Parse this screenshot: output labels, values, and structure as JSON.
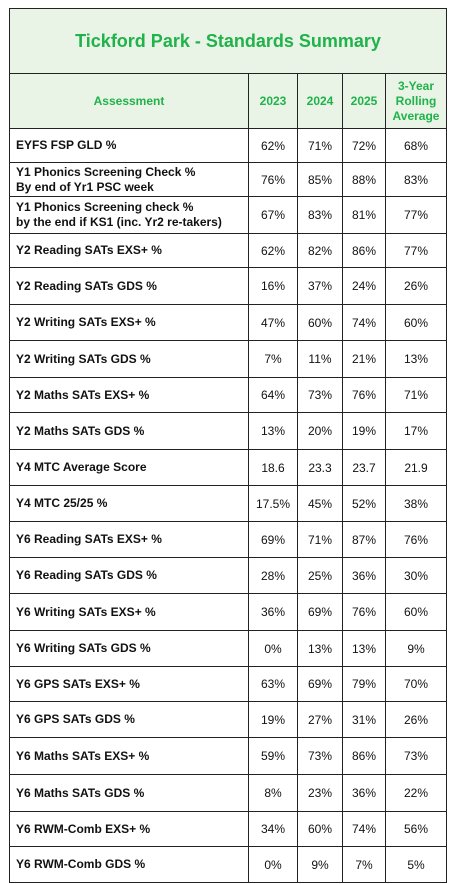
{
  "title": "Tickford Park - Standards Summary",
  "headers": {
    "assessment": "Assessment",
    "y2023": "2023",
    "y2024": "2024",
    "y2025": "2025",
    "rolling_line1": "3-Year",
    "rolling_line2": "Rolling",
    "rolling_line3": "Average"
  },
  "rows": [
    {
      "label": "EYFS FSP GLD %",
      "sub": "",
      "v2023": "62%",
      "v2024": "71%",
      "v2025": "72%",
      "avg": "68%"
    },
    {
      "label": "Y1 Phonics Screening Check %",
      "sub": "By end of Yr1 PSC week",
      "v2023": "76%",
      "v2024": "85%",
      "v2025": "88%",
      "avg": "83%"
    },
    {
      "label": "Y1 Phonics Screening check %",
      "sub": "by the end if KS1 (inc. Yr2 re-takers)",
      "v2023": "67%",
      "v2024": "83%",
      "v2025": "81%",
      "avg": "77%"
    },
    {
      "label": "Y2 Reading SATs EXS+ %",
      "sub": "",
      "v2023": "62%",
      "v2024": "82%",
      "v2025": "86%",
      "avg": "77%"
    },
    {
      "label": "Y2 Reading SATs GDS %",
      "sub": "",
      "v2023": "16%",
      "v2024": "37%",
      "v2025": "24%",
      "avg": "26%"
    },
    {
      "label": "Y2 Writing SATs EXS+ %",
      "sub": "",
      "v2023": "47%",
      "v2024": "60%",
      "v2025": "74%",
      "avg": "60%"
    },
    {
      "label": "Y2 Writing SATs GDS %",
      "sub": "",
      "v2023": "7%",
      "v2024": "11%",
      "v2025": "21%",
      "avg": "13%"
    },
    {
      "label": "Y2 Maths SATs EXS+ %",
      "sub": "",
      "v2023": "64%",
      "v2024": "73%",
      "v2025": "76%",
      "avg": "71%"
    },
    {
      "label": "Y2 Maths SATs GDS %",
      "sub": "",
      "v2023": "13%",
      "v2024": "20%",
      "v2025": "19%",
      "avg": "17%"
    },
    {
      "label": "Y4 MTC Average Score",
      "sub": "",
      "v2023": "18.6",
      "v2024": "23.3",
      "v2025": "23.7",
      "avg": "21.9"
    },
    {
      "label": "Y4 MTC 25/25 %",
      "sub": "",
      "v2023": "17.5%",
      "v2024": "45%",
      "v2025": "52%",
      "avg": "38%"
    },
    {
      "label": "Y6 Reading SATs EXS+ %",
      "sub": "",
      "v2023": "69%",
      "v2024": "71%",
      "v2025": "87%",
      "avg": "76%"
    },
    {
      "label": "Y6 Reading SATs GDS %",
      "sub": "",
      "v2023": "28%",
      "v2024": "25%",
      "v2025": "36%",
      "avg": "30%"
    },
    {
      "label": "Y6 Writing SATs EXS+ %",
      "sub": "",
      "v2023": "36%",
      "v2024": "69%",
      "v2025": "76%",
      "avg": "60%"
    },
    {
      "label": "Y6 Writing SATs GDS %",
      "sub": "",
      "v2023": "0%",
      "v2024": "13%",
      "v2025": "13%",
      "avg": "9%"
    },
    {
      "label": "Y6 GPS SATs EXS+ %",
      "sub": "",
      "v2023": "63%",
      "v2024": "69%",
      "v2025": "79%",
      "avg": "70%"
    },
    {
      "label": "Y6 GPS SATs GDS %",
      "sub": "",
      "v2023": "19%",
      "v2024": "27%",
      "v2025": "31%",
      "avg": "26%"
    },
    {
      "label": "Y6 Maths SATs EXS+ %",
      "sub": "",
      "v2023": "59%",
      "v2024": "73%",
      "v2025": "86%",
      "avg": "73%"
    },
    {
      "label": "Y6 Maths SATs GDS %",
      "sub": "",
      "v2023": "8%",
      "v2024": "23%",
      "v2025": "36%",
      "avg": "22%"
    },
    {
      "label": "Y6 RWM-Comb EXS+ %",
      "sub": "",
      "v2023": "34%",
      "v2024": "60%",
      "v2025": "74%",
      "avg": "56%"
    },
    {
      "label": "Y6 RWM-Comb GDS %",
      "sub": "",
      "v2023": "0%",
      "v2024": "9%",
      "v2025": "7%",
      "avg": "5%"
    }
  ]
}
